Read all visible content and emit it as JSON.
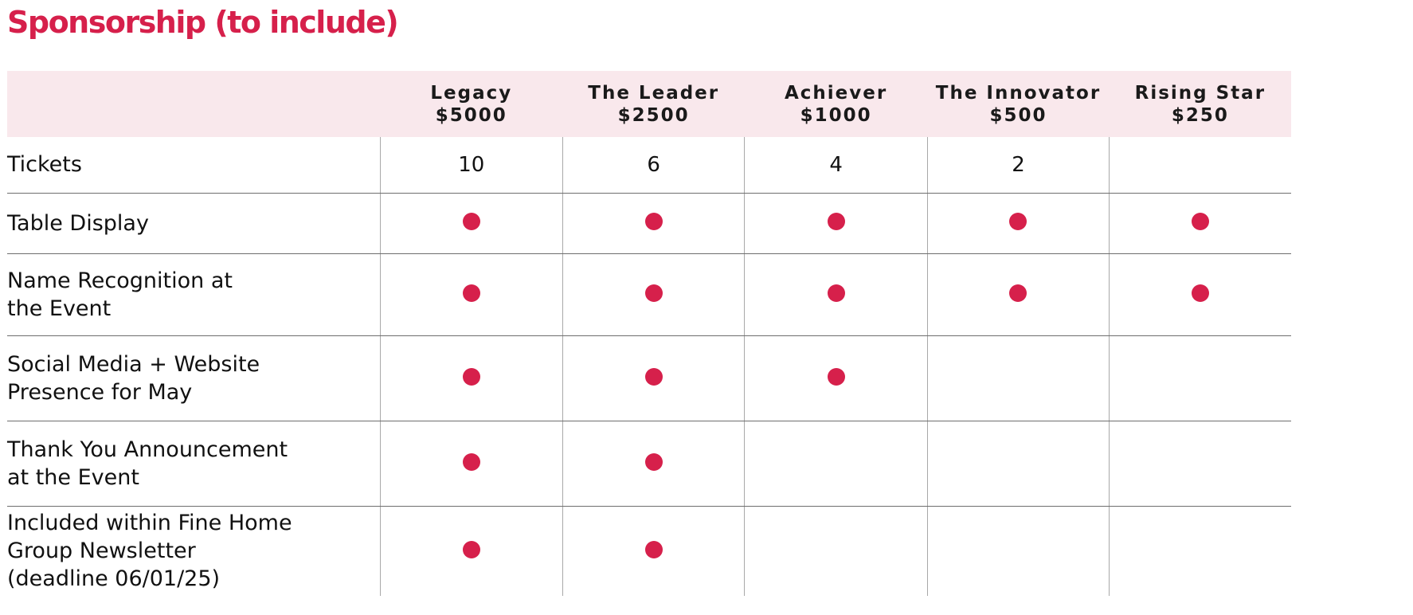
{
  "title": "Sponsorship (to include)",
  "accent_color": "#d6204b",
  "header_bg": "#f9e8ec",
  "tiers": [
    {
      "name": "Legacy",
      "price": "$5000"
    },
    {
      "name": "The Leader",
      "price": "$2500"
    },
    {
      "name": "Achiever",
      "price": "$1000"
    },
    {
      "name": "The Innovator",
      "price": "$500"
    },
    {
      "name": "Rising Star",
      "price": "$250"
    }
  ],
  "rows": [
    {
      "label_lines": [
        "Tickets"
      ],
      "cells": [
        "10",
        "6",
        "4",
        "2",
        ""
      ]
    },
    {
      "label_lines": [
        "Table Display"
      ],
      "cells": [
        "dot",
        "dot",
        "dot",
        "dot",
        "dot"
      ]
    },
    {
      "label_lines": [
        "Name Recognition at",
        "the Event"
      ],
      "cells": [
        "dot",
        "dot",
        "dot",
        "dot",
        "dot"
      ]
    },
    {
      "label_lines": [
        "Social Media + Website",
        "Presence for May"
      ],
      "cells": [
        "dot",
        "dot",
        "dot",
        "",
        ""
      ]
    },
    {
      "label_lines": [
        "Thank You Announcement",
        "at the Event"
      ],
      "cells": [
        "dot",
        "dot",
        "",
        "",
        ""
      ]
    },
    {
      "label_lines": [
        "Included within Fine Home",
        "Group Newsletter",
        "(deadline 06/01/25)"
      ],
      "cells": [
        "dot",
        "dot",
        "",
        "",
        ""
      ]
    }
  ]
}
